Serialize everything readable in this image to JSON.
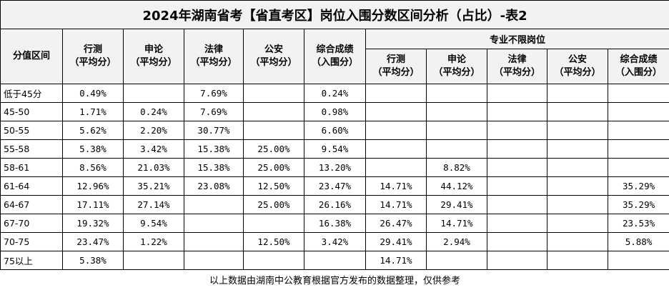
{
  "title": "2024年湖南省考【省直考区】岗位入围分数区间分析（占比）-表2",
  "columns": [
    {
      "name": "分值区间"
    },
    {
      "name": "行测",
      "sub": "（平均分）"
    },
    {
      "name": "申论",
      "sub": "（平均分）"
    },
    {
      "name": "法律",
      "sub": "（平均分）"
    },
    {
      "name": "公安",
      "sub": "（平均分）"
    },
    {
      "name": "综合成绩",
      "sub": "（入围分）"
    }
  ],
  "group": {
    "title": "专业不限岗位",
    "columns": [
      {
        "name": "行测",
        "sub": "（平均分）"
      },
      {
        "name": "申论",
        "sub": "（平均分）"
      },
      {
        "name": "法律",
        "sub": "（平均分）"
      },
      {
        "name": "公安",
        "sub": "（平均分）"
      },
      {
        "name": "综合成绩",
        "sub": "（入围分）"
      }
    ]
  },
  "rows": [
    [
      "低于45分",
      "0.49%",
      null,
      "7.69%",
      null,
      "0.24%",
      null,
      null,
      null,
      null,
      null
    ],
    [
      "45-50",
      "1.71%",
      "0.24%",
      "7.69%",
      null,
      "0.98%",
      null,
      null,
      null,
      null,
      null
    ],
    [
      "50-55",
      "5.62%",
      "2.20%",
      "30.77%",
      null,
      "6.60%",
      null,
      null,
      null,
      null,
      null
    ],
    [
      "55-58",
      "5.38%",
      "3.42%",
      "15.38%",
      "25.00%",
      "9.54%",
      null,
      null,
      null,
      null,
      null
    ],
    [
      "58-61",
      "8.56%",
      "21.03%",
      "15.38%",
      "25.00%",
      "13.20%",
      null,
      "8.82%",
      null,
      null,
      null
    ],
    [
      "61-64",
      "12.96%",
      "35.21%",
      "23.08%",
      "12.50%",
      "23.47%",
      "14.71%",
      "44.12%",
      null,
      null,
      "35.29%"
    ],
    [
      "64-67",
      "17.11%",
      "27.14%",
      null,
      "25.00%",
      "26.16%",
      "14.71%",
      "29.41%",
      null,
      null,
      "35.29%"
    ],
    [
      "67-70",
      "19.32%",
      "9.54%",
      null,
      null,
      "16.38%",
      "26.47%",
      "14.71%",
      null,
      null,
      "23.53%"
    ],
    [
      "70-75",
      "23.47%",
      "1.22%",
      null,
      "12.50%",
      "3.42%",
      "29.41%",
      "2.94%",
      null,
      null,
      "5.88%"
    ],
    [
      "75以上",
      "5.38%",
      null,
      null,
      null,
      null,
      "14.71%",
      null,
      null,
      null,
      null
    ]
  ],
  "footer": "以上数据由湖南中公教育根据官方发布的数据整理，仅供参考"
}
